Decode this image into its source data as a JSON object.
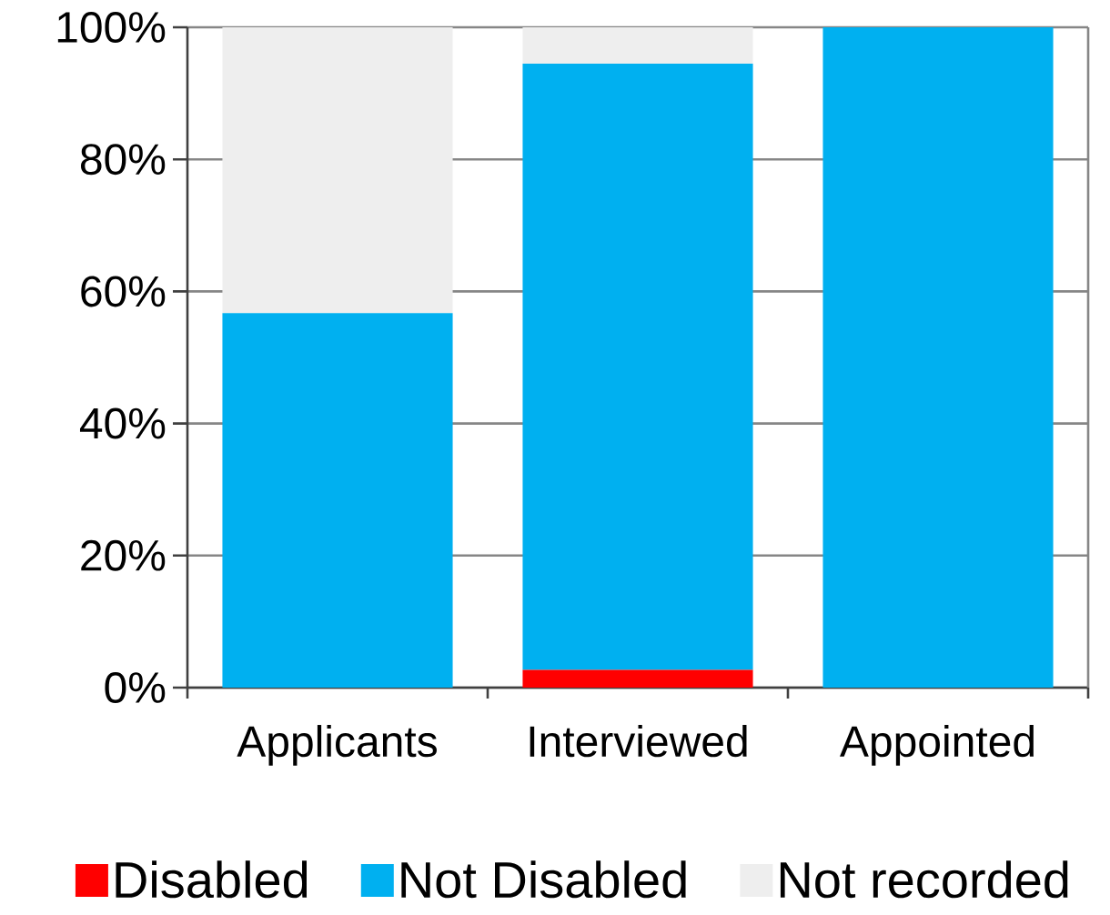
{
  "chart_data": {
    "type": "bar",
    "stacked": true,
    "categories": [
      "Applicants",
      "Interviewed",
      "Appointed"
    ],
    "series": [
      {
        "name": "Disabled",
        "color": "#ff0000",
        "values": [
          0,
          2.7,
          0
        ]
      },
      {
        "name": "Not Disabled",
        "color": "#00b0f0",
        "values": [
          56.7,
          91.8,
          100
        ]
      },
      {
        "name": "Not recorded",
        "color": "#eeeeee",
        "values": [
          43.3,
          5.5,
          0
        ]
      }
    ],
    "ylim": [
      0,
      100
    ],
    "yticks": [
      {
        "value": 0,
        "label": "0%"
      },
      {
        "value": 20,
        "label": "20%"
      },
      {
        "value": 40,
        "label": "40%"
      },
      {
        "value": 60,
        "label": "60%"
      },
      {
        "value": 80,
        "label": "80%"
      },
      {
        "value": 100,
        "label": "100%"
      }
    ],
    "grid": "y",
    "legend": "bottom"
  }
}
